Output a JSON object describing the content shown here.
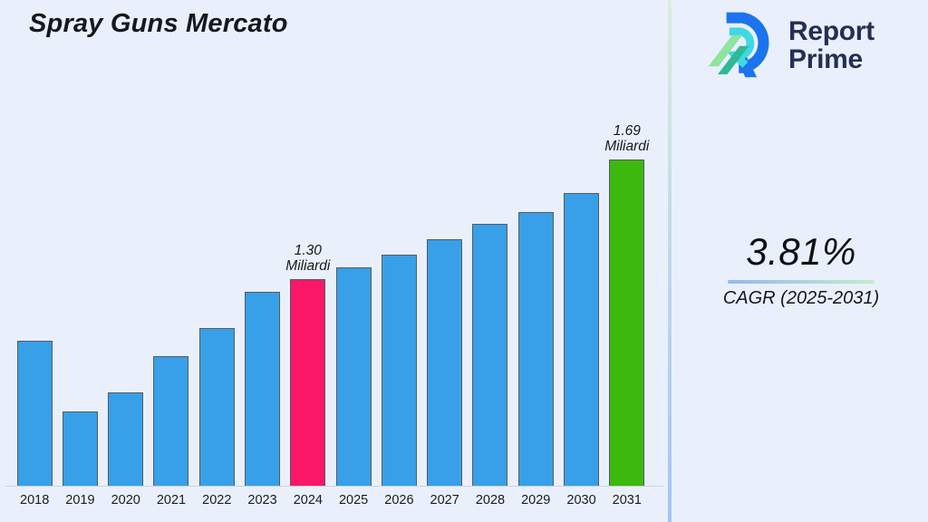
{
  "logo": {
    "name": "Report Prime",
    "line1": "Report",
    "line2": "Prime"
  },
  "kpi": {
    "value": "3.81%",
    "label": "CAGR (2025-2031)"
  },
  "colors": {
    "background": "#e9f0fb",
    "bar_default": "#38a0e8",
    "bar_border": "#555b63",
    "highlight_2024": "#fa1767",
    "highlight_2031": "#3db80f",
    "divider_top": "#d9eeda",
    "divider_bottom": "#a3c4f6",
    "underline_left": "#96b7ef",
    "underline_right": "#c4ecc9",
    "logo_navy": "#252f55",
    "logo_blue": "#1b74ee",
    "logo_cyan": "#3fd9e3",
    "logo_green": "#8fe49f",
    "logo_teal": "#2fb896"
  },
  "chart_data": {
    "type": "bar",
    "title": "Spray Guns Mercato",
    "xlabel": "",
    "ylabel": "",
    "unit": "Miliardi",
    "grid": false,
    "legend": false,
    "ylim": [
      0.63,
      1.87
    ],
    "categories": [
      "2018",
      "2019",
      "2020",
      "2021",
      "2022",
      "2023",
      "2024",
      "2025",
      "2026",
      "2027",
      "2028",
      "2029",
      "2030",
      "2031"
    ],
    "values": [
      1.1,
      0.87,
      0.93,
      1.05,
      1.14,
      1.26,
      1.3,
      1.34,
      1.38,
      1.43,
      1.48,
      1.52,
      1.58,
      1.69
    ],
    "labeled_values": {
      "2024": 1.3,
      "2031": 1.69
    },
    "annotations": [
      {
        "category": "2024",
        "line1": "1.30",
        "line2": "Miliardi"
      },
      {
        "category": "2031",
        "line1": "1.69",
        "line2": "Miliardi"
      }
    ],
    "highlight_colors": {
      "2024": "#fa1767",
      "2031": "#3db80f"
    }
  }
}
